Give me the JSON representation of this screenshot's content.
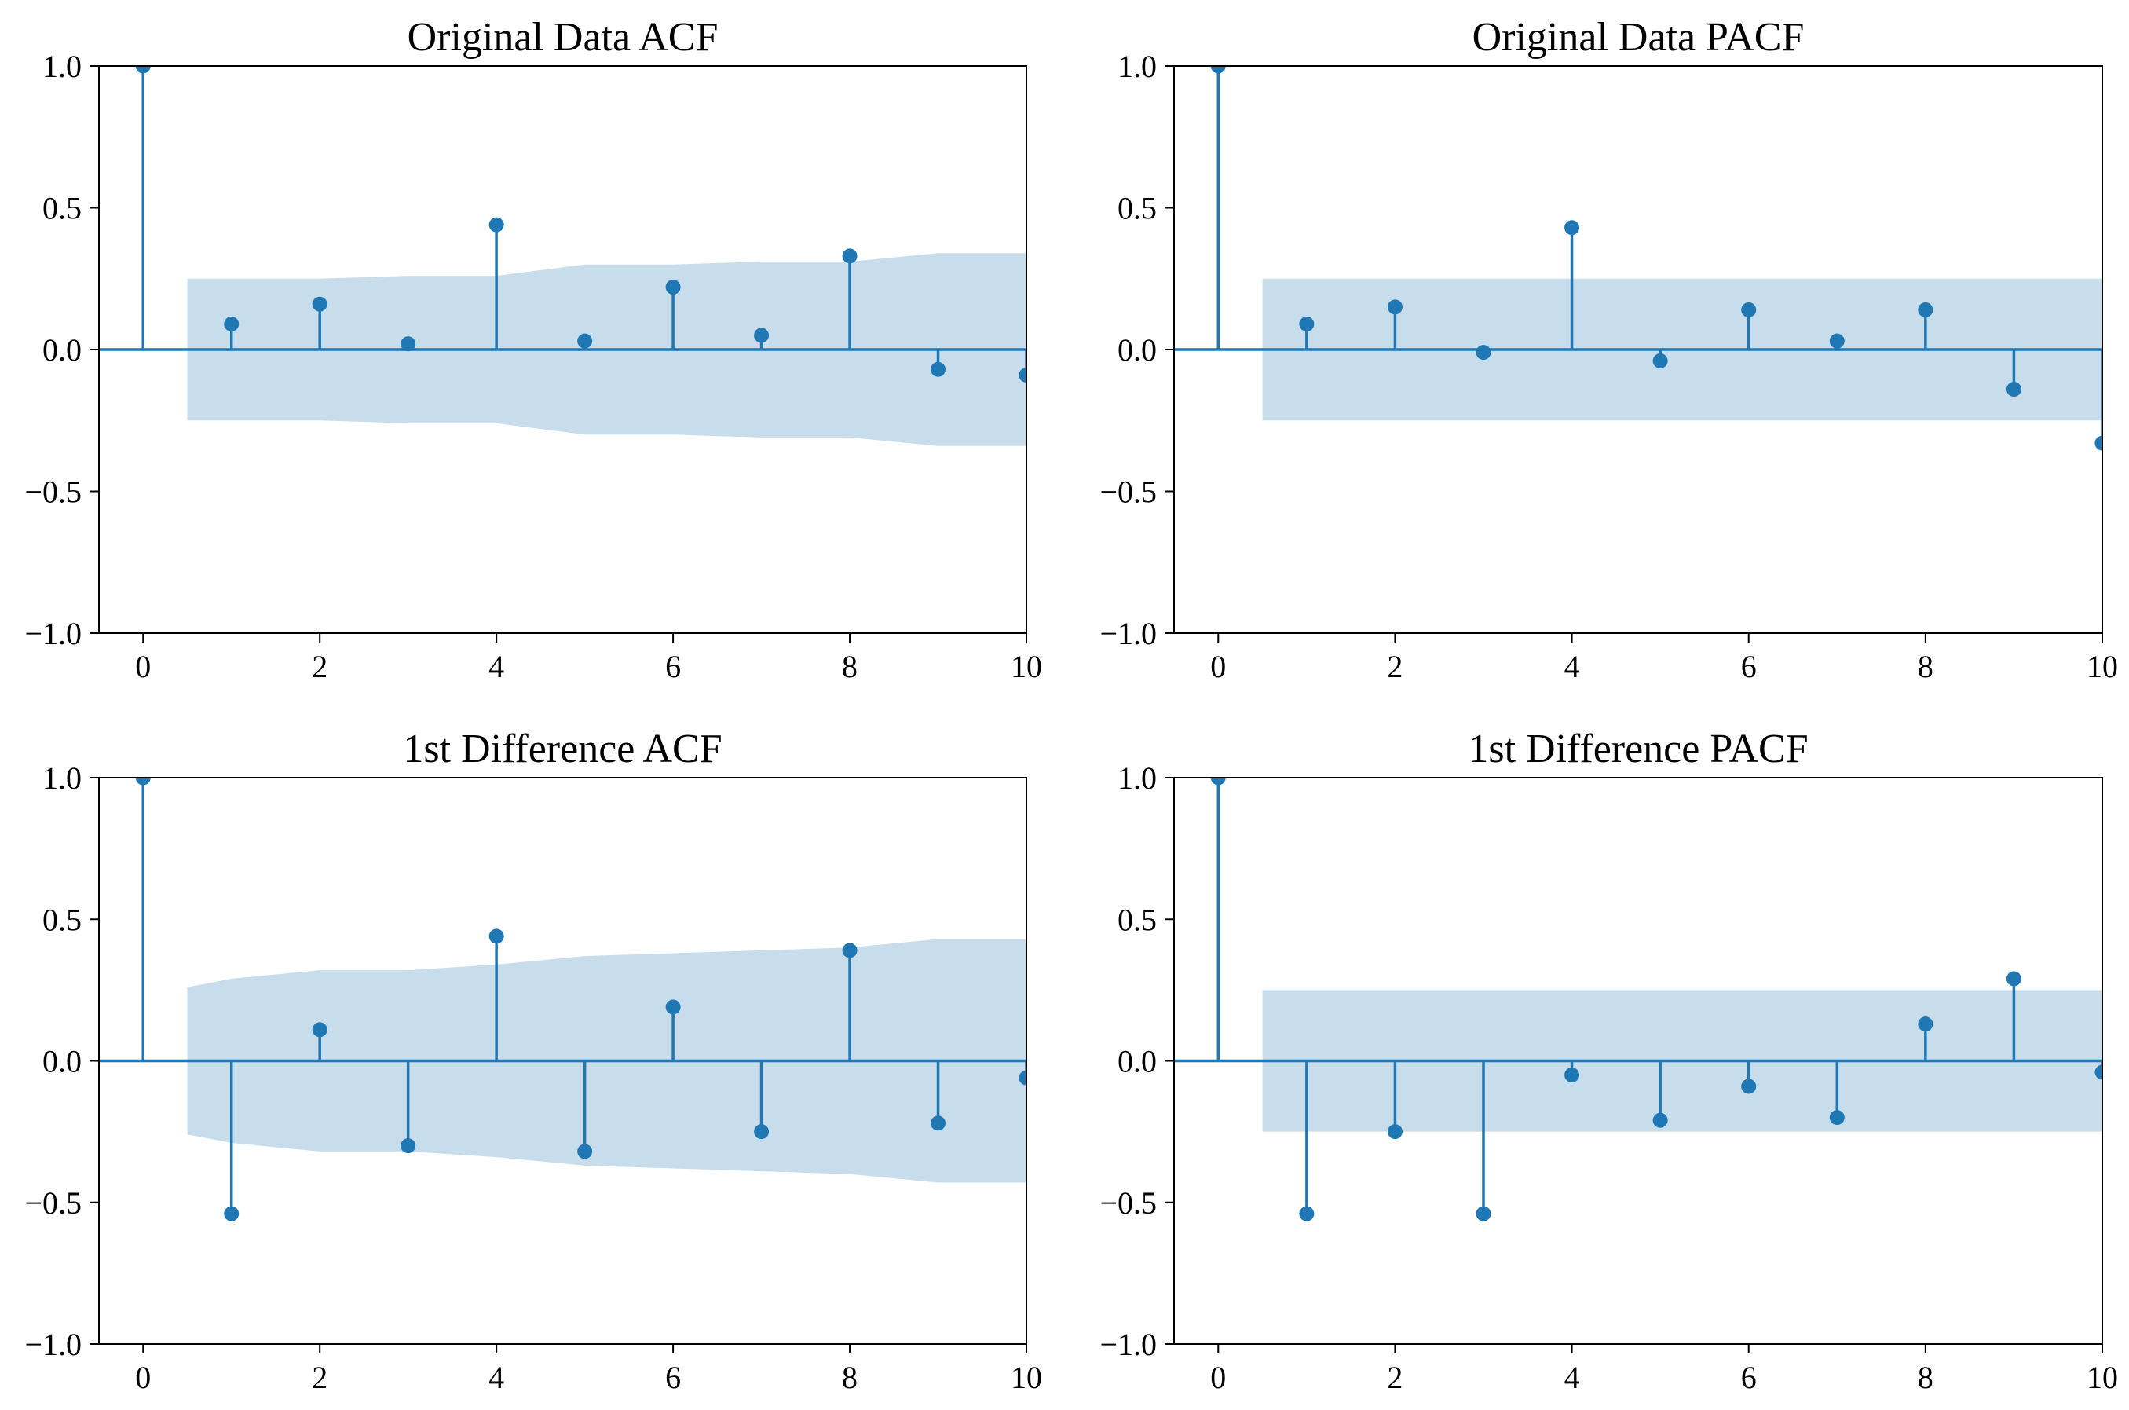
{
  "figure": {
    "layout": "2x2 grid"
  },
  "colors": {
    "stem": "#1f77b4",
    "band": "#1f77b4",
    "band_opacity": "0.25",
    "axes": "#000000",
    "background": "#ffffff"
  },
  "chart_data": [
    {
      "type": "stem",
      "title": "Original Data ACF",
      "xlim": [
        -0.5,
        10
      ],
      "ylim": [
        -1.0,
        1.0
      ],
      "xticks": [
        0,
        2,
        4,
        6,
        8,
        10
      ],
      "yticks": [
        1.0,
        0.5,
        0.0,
        -0.5,
        -1.0
      ],
      "ytick_labels": [
        "1.0",
        "0.5",
        "0.0",
        "−0.5",
        "−1.0"
      ],
      "xtick_labels": [
        "0",
        "2",
        "4",
        "6",
        "8",
        "10"
      ],
      "lags": [
        0,
        1,
        2,
        3,
        4,
        5,
        6,
        7,
        8,
        9,
        10
      ],
      "values": [
        1.0,
        0.09,
        0.16,
        0.02,
        0.44,
        0.03,
        0.22,
        0.05,
        0.33,
        -0.07,
        -0.09
      ],
      "confidence_band": {
        "x": [
          0.5,
          1,
          2,
          3,
          4,
          5,
          6,
          7,
          8,
          9,
          10
        ],
        "upper": [
          0.25,
          0.25,
          0.25,
          0.26,
          0.26,
          0.3,
          0.3,
          0.31,
          0.31,
          0.34,
          0.34
        ],
        "lower": [
          -0.25,
          -0.25,
          -0.25,
          -0.26,
          -0.26,
          -0.3,
          -0.3,
          -0.31,
          -0.31,
          -0.34,
          -0.34
        ]
      }
    },
    {
      "type": "stem",
      "title": "Original Data PACF",
      "xlim": [
        -0.5,
        10
      ],
      "ylim": [
        -1.0,
        1.0
      ],
      "xticks": [
        0,
        2,
        4,
        6,
        8,
        10
      ],
      "yticks": [
        1.0,
        0.5,
        0.0,
        -0.5,
        -1.0
      ],
      "ytick_labels": [
        "1.0",
        "0.5",
        "0.0",
        "−0.5",
        "−1.0"
      ],
      "xtick_labels": [
        "0",
        "2",
        "4",
        "6",
        "8",
        "10"
      ],
      "lags": [
        0,
        1,
        2,
        3,
        4,
        5,
        6,
        7,
        8,
        9,
        10
      ],
      "values": [
        1.0,
        0.09,
        0.15,
        -0.01,
        0.43,
        -0.04,
        0.14,
        0.03,
        0.14,
        -0.14,
        -0.33
      ],
      "confidence_band": {
        "x": [
          0.5,
          10
        ],
        "upper": [
          0.25,
          0.25
        ],
        "lower": [
          -0.25,
          -0.25
        ]
      }
    },
    {
      "type": "stem",
      "title": "1st Difference ACF",
      "xlim": [
        -0.5,
        10
      ],
      "ylim": [
        -1.0,
        1.0
      ],
      "xticks": [
        0,
        2,
        4,
        6,
        8,
        10
      ],
      "yticks": [
        1.0,
        0.5,
        0.0,
        -0.5,
        -1.0
      ],
      "ytick_labels": [
        "1.0",
        "0.5",
        "0.0",
        "−0.5",
        "−1.0"
      ],
      "xtick_labels": [
        "0",
        "2",
        "4",
        "6",
        "8",
        "10"
      ],
      "lags": [
        0,
        1,
        2,
        3,
        4,
        5,
        6,
        7,
        8,
        9,
        10
      ],
      "values": [
        1.0,
        -0.54,
        0.11,
        -0.3,
        0.44,
        -0.32,
        0.19,
        -0.25,
        0.39,
        -0.22,
        -0.06
      ],
      "confidence_band": {
        "x": [
          0.5,
          1,
          2,
          3,
          4,
          5,
          6,
          7,
          8,
          9,
          10
        ],
        "upper": [
          0.26,
          0.29,
          0.32,
          0.32,
          0.34,
          0.37,
          0.38,
          0.39,
          0.4,
          0.43,
          0.43
        ],
        "lower": [
          -0.26,
          -0.29,
          -0.32,
          -0.32,
          -0.34,
          -0.37,
          -0.38,
          -0.39,
          -0.4,
          -0.43,
          -0.43
        ]
      }
    },
    {
      "type": "stem",
      "title": "1st Difference PACF",
      "xlim": [
        -0.5,
        10
      ],
      "ylim": [
        -1.0,
        1.0
      ],
      "xticks": [
        0,
        2,
        4,
        6,
        8,
        10
      ],
      "yticks": [
        1.0,
        0.5,
        0.0,
        -0.5,
        -1.0
      ],
      "ytick_labels": [
        "1.0",
        "0.5",
        "0.0",
        "−0.5",
        "−1.0"
      ],
      "xtick_labels": [
        "0",
        "2",
        "4",
        "6",
        "8",
        "10"
      ],
      "lags": [
        0,
        1,
        2,
        3,
        4,
        5,
        6,
        7,
        8,
        9,
        10
      ],
      "values": [
        1.0,
        -0.54,
        -0.25,
        -0.54,
        -0.05,
        -0.21,
        -0.09,
        -0.2,
        0.13,
        0.29,
        -0.04
      ],
      "confidence_band": {
        "x": [
          0.5,
          10
        ],
        "upper": [
          0.25,
          0.25
        ],
        "lower": [
          -0.25,
          -0.25
        ]
      }
    }
  ]
}
